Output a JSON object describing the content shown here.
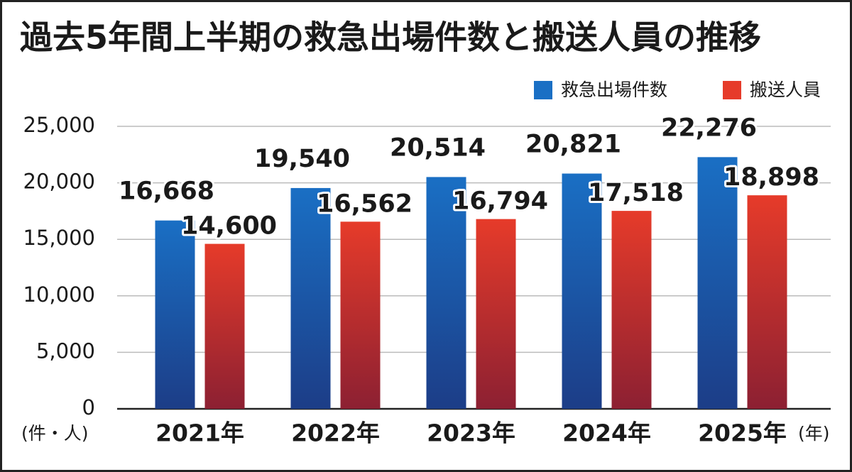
{
  "chart_data": {
    "type": "bar",
    "title": "過去5年間上半期の救急出場件数と搬送人員の推移",
    "categories": [
      "2021年",
      "2022年",
      "2023年",
      "2024年",
      "2025年"
    ],
    "series": [
      {
        "name": "救急出場件数",
        "color": "#1a6fc4",
        "values": [
          16668,
          19540,
          20514,
          20821,
          22276
        ],
        "value_labels": [
          "16,668",
          "19,540",
          "20,514",
          "20,821",
          "22,276"
        ]
      },
      {
        "name": "搬送人員",
        "color": "#e63b2a",
        "values": [
          14600,
          16562,
          16794,
          17518,
          18898
        ],
        "value_labels": [
          "14,600",
          "16,562",
          "16,794",
          "17,518",
          "18,898"
        ]
      }
    ],
    "ylim": [
      0,
      25000
    ],
    "yticks": [
      0,
      {
        "value": 5000,
        "label": "5,000"
      },
      {
        "value": 10000,
        "label": "10,000"
      },
      {
        "value": 15000,
        "label": "15,000"
      },
      {
        "value": 20000,
        "label": "20,000"
      },
      {
        "value": 25000,
        "label": "25,000"
      }
    ],
    "y_label": "(件・人)",
    "x_label": "(年)",
    "grid": true,
    "legend": "top-right"
  }
}
